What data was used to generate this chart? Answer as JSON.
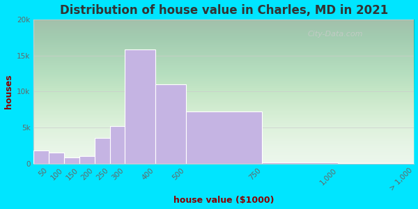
{
  "title": "Distribution of house value in Charles, MD in 2021",
  "xlabel": "house value ($1000)",
  "ylabel": "houses",
  "bin_edges": [
    0,
    50,
    100,
    150,
    200,
    250,
    300,
    400,
    500,
    750,
    1000,
    1250
  ],
  "bin_labels": [
    "50",
    "100",
    "150",
    "200",
    "250",
    "300",
    "400",
    "500",
    "750",
    "1,000",
    "> 1,000"
  ],
  "bar_values": [
    1800,
    1500,
    800,
    1000,
    3500,
    5200,
    15800,
    11000,
    7200,
    200,
    100
  ],
  "bar_color": "#c5b4e3",
  "bar_edge_color": "#ffffff",
  "ylim": [
    0,
    20000
  ],
  "yticks": [
    0,
    5000,
    10000,
    15000,
    20000
  ],
  "ytick_labels": [
    "0",
    "5k",
    "10k",
    "15k",
    "20k"
  ],
  "bg_outer": "#00e5ff",
  "bg_plot_color": "#e8f5e9",
  "title_color": "#333333",
  "axis_label_color": "#8B0000",
  "tick_label_color": "#666666",
  "watermark_text": "City-Data.com",
  "watermark_color": "#cccccc",
  "grid_color": "#cccccc",
  "title_fontsize": 12,
  "label_fontsize": 9,
  "tick_fontsize": 7.5
}
